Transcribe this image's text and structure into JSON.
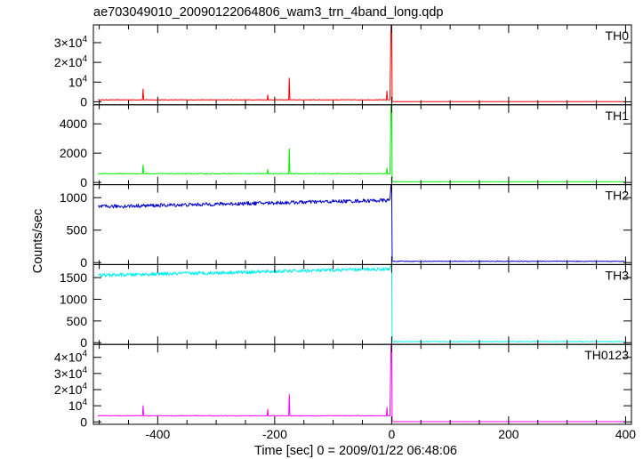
{
  "title": "ae703049010_20090122064806_wam3_trn_4band_long.qdp",
  "chart_data": {
    "type": "line",
    "xlabel": "Time [sec] 0 = 2009/01/22 06:48:06",
    "ylabel": "Counts/sec",
    "xlim": [
      -510,
      410
    ],
    "xticks_major": [
      -400,
      -200,
      0,
      200,
      400
    ],
    "xticks_minor_step": 50,
    "panels": [
      {
        "name": "TH0",
        "color": "#ff0000",
        "ylim": [
          -1500,
          39000
        ],
        "yticks": [
          {
            "v": 0,
            "base": "0",
            "exp": ""
          },
          {
            "v": 10000,
            "base": "10",
            "exp": "4"
          },
          {
            "v": 20000,
            "base": "2×10",
            "exp": "4"
          },
          {
            "v": 30000,
            "base": "3×10",
            "exp": "4"
          }
        ],
        "pre_level": 1000,
        "pre_noise": 150,
        "spikes": [
          [
            -425,
            6500
          ],
          [
            -212,
            3500
          ],
          [
            -175,
            12000
          ],
          [
            -8,
            5500
          ]
        ],
        "peak": 39000,
        "post_level": 100,
        "post_noise": 20
      },
      {
        "name": "TH1",
        "color": "#00ee00",
        "ylim": [
          -150,
          5300
        ],
        "yticks": [
          {
            "v": 0,
            "base": "0",
            "exp": ""
          },
          {
            "v": 2000,
            "base": "2000",
            "exp": ""
          },
          {
            "v": 4000,
            "base": "4000",
            "exp": ""
          }
        ],
        "pre_level": 600,
        "pre_noise": 25,
        "spikes": [
          [
            -425,
            1200
          ],
          [
            -212,
            900
          ],
          [
            -175,
            2300
          ],
          [
            -8,
            1000
          ]
        ],
        "peak": 5300,
        "post_level": 50,
        "post_noise": 10
      },
      {
        "name": "TH2",
        "color": "#0000cc",
        "ylim": [
          -30,
          1200
        ],
        "yticks": [
          {
            "v": 0,
            "base": "0",
            "exp": ""
          },
          {
            "v": 500,
            "base": "500",
            "exp": ""
          },
          {
            "v": 1000,
            "base": "1000",
            "exp": ""
          }
        ],
        "pre_start": 860,
        "pre_end": 960,
        "pre_noise": 28,
        "spikes": [],
        "peak": 1200,
        "post_level": 20,
        "post_noise": 5
      },
      {
        "name": "TH3",
        "color": "#00eeee",
        "ylim": [
          -40,
          1800
        ],
        "yticks": [
          {
            "v": 0,
            "base": "0",
            "exp": ""
          },
          {
            "v": 500,
            "base": "500",
            "exp": ""
          },
          {
            "v": 1000,
            "base": "1000",
            "exp": ""
          },
          {
            "v": 1500,
            "base": "1500",
            "exp": ""
          }
        ],
        "pre_start": 1550,
        "pre_end": 1700,
        "pre_noise": 40,
        "spikes": [],
        "peak": 1800,
        "post_level": 25,
        "post_noise": 6
      },
      {
        "name": "TH0123",
        "color": "#ff00ff",
        "ylim": [
          -1500,
          48000
        ],
        "yticks": [
          {
            "v": 0,
            "base": "0",
            "exp": ""
          },
          {
            "v": 10000,
            "base": "10",
            "exp": "4"
          },
          {
            "v": 20000,
            "base": "2×10",
            "exp": "4"
          },
          {
            "v": 30000,
            "base": "3×10",
            "exp": "4"
          },
          {
            "v": 40000,
            "base": "4×10",
            "exp": "4"
          }
        ],
        "pre_level": 3800,
        "pre_noise": 200,
        "spikes": [
          [
            -425,
            10000
          ],
          [
            -212,
            7800
          ],
          [
            -175,
            17000
          ],
          [
            -8,
            9000
          ]
        ],
        "peak": 48000,
        "post_level": 150,
        "post_noise": 25
      }
    ]
  }
}
